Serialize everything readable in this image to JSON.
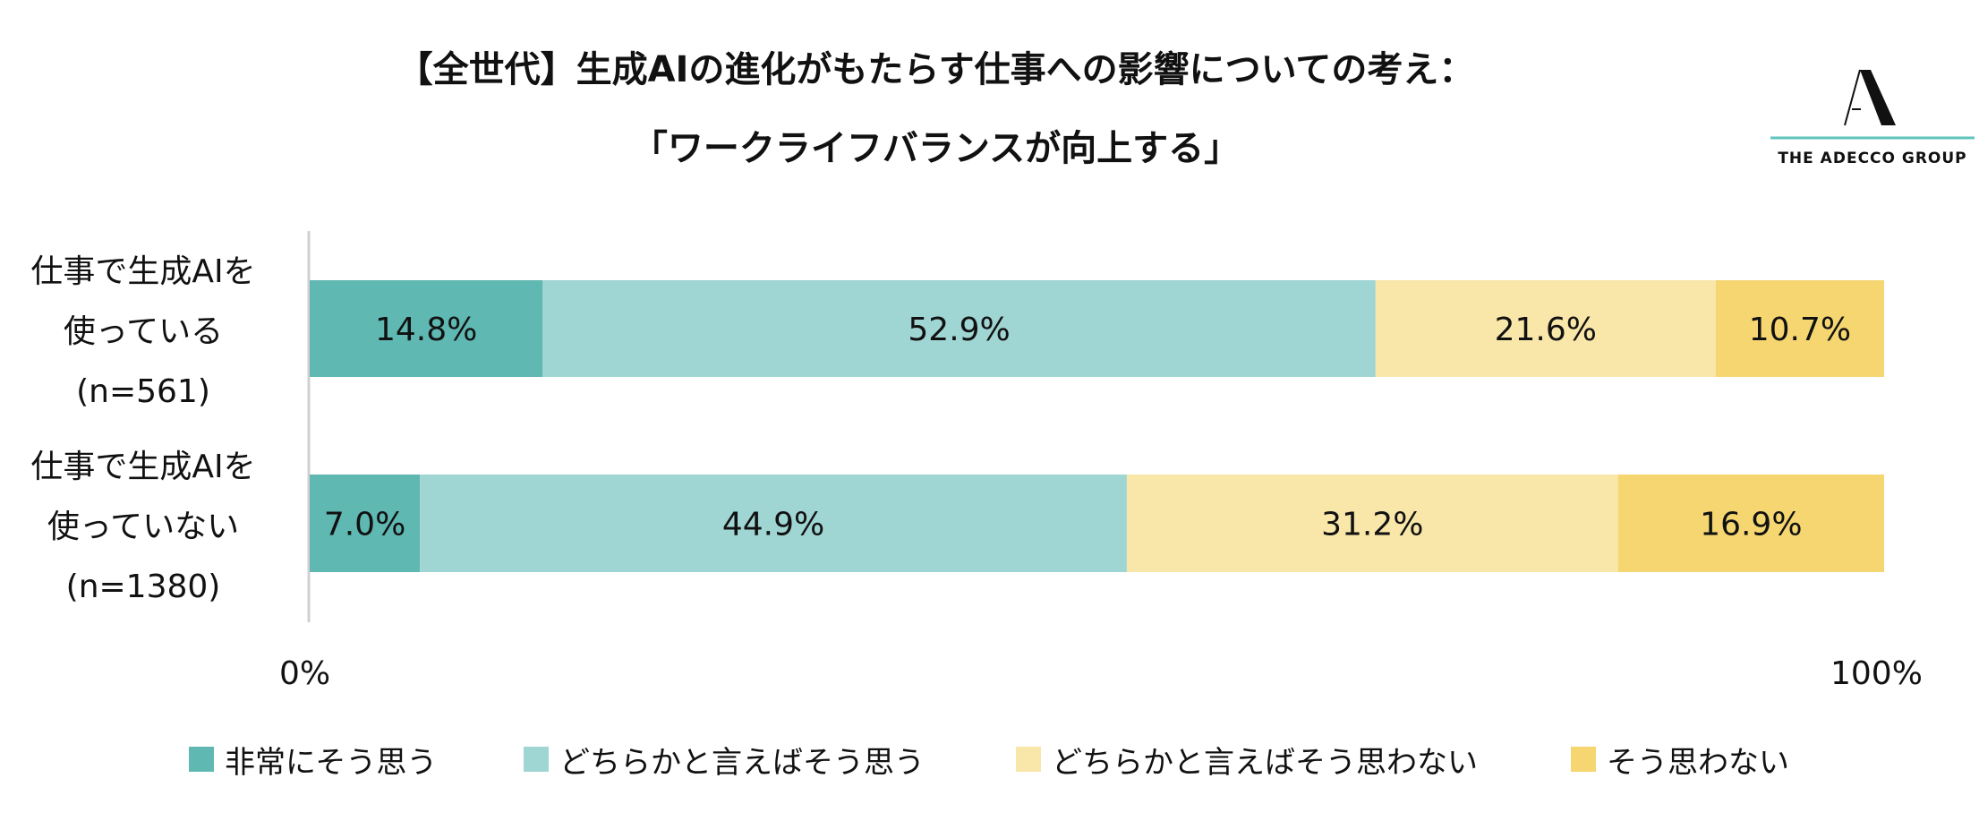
{
  "title_line1": "【全世代】生成AIの進化がもたらす仕事への影響についての考え：",
  "title_line2": "「ワークライフバランスが向上する」",
  "logo": {
    "text": "THE ADECCO GROUP",
    "accent": "#5fc4bd"
  },
  "chart_data": {
    "type": "bar",
    "orientation": "horizontal-stacked-100",
    "title": "【全世代】生成AIの進化がもたらす仕事への影響についての考え：「ワークライフバランスが向上する」",
    "categories": [
      {
        "lines": [
          "仕事で生成AIを",
          "使っている",
          "(n=561)"
        ]
      },
      {
        "lines": [
          "仕事で生成AIを",
          "使っていない",
          "(n=1380)"
        ]
      }
    ],
    "series": [
      {
        "name": "非常にそう思う",
        "color": "#5fb8b2",
        "values": [
          14.8,
          7.0
        ],
        "labels": [
          "14.8%",
          "7.0%"
        ]
      },
      {
        "name": "どちらかと言えばそう思う",
        "color": "#9fd5d2",
        "values": [
          52.9,
          44.9
        ],
        "labels": [
          "52.9%",
          "44.9%"
        ]
      },
      {
        "name": "どちらかと言えばそう思わない",
        "color": "#f9e6a9",
        "values": [
          21.6,
          31.2
        ],
        "labels": [
          "21.6%",
          "31.2%"
        ]
      },
      {
        "name": "そう思わない",
        "color": "#f5d671",
        "values": [
          10.7,
          16.9
        ],
        "labels": [
          "10.7%",
          "16.9%"
        ]
      }
    ],
    "xlim": [
      0,
      100
    ],
    "xticks": [
      "0%",
      "100%"
    ],
    "legend_position": "bottom",
    "grid": false
  }
}
